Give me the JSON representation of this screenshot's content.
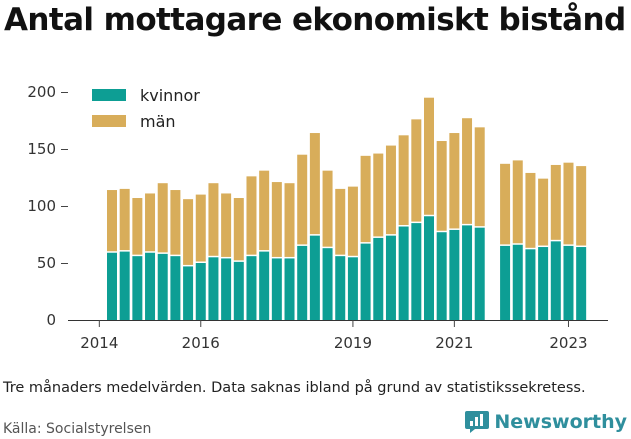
{
  "title": "Antal mottagare ekonomiskt bistånd",
  "note": "Tre månaders medelvärden. Data saknas ibland på grund av statistikssekretess.",
  "source": "Källa: Socialstyrelsen",
  "brand": "Newsworthy",
  "colors": {
    "kvinnor": "#0d9e94",
    "man": "#d8ad5a",
    "brand": "#2f8f9d"
  },
  "chart_data": {
    "type": "bar",
    "stacked": true,
    "grid": false,
    "legend_placement": "top-left",
    "y_ticks": [
      0,
      50,
      100,
      150,
      200
    ],
    "ylim": [
      0,
      210
    ],
    "x_tick_labels": [
      "2014",
      "2016",
      "2019",
      "2021",
      "2023"
    ],
    "x_tick_indices": [
      -1,
      7,
      19,
      27,
      36
    ],
    "series": [
      {
        "name": "kvinnor",
        "values": [
          59,
          60,
          56,
          59,
          58,
          56,
          47,
          50,
          55,
          54,
          51,
          56,
          60,
          54,
          54,
          65,
          74,
          63,
          56,
          55,
          67,
          72,
          74,
          82,
          85,
          91,
          77,
          79,
          83,
          81,
          null,
          65,
          66,
          62,
          64,
          69,
          65,
          64
        ]
      },
      {
        "name": "män",
        "values": [
          55,
          55,
          51,
          52,
          62,
          58,
          59,
          60,
          65,
          57,
          56,
          70,
          71,
          67,
          66,
          80,
          90,
          68,
          59,
          62,
          77,
          74,
          79,
          80,
          91,
          104,
          80,
          85,
          94,
          88,
          null,
          72,
          74,
          67,
          60,
          67,
          73,
          71
        ]
      }
    ]
  }
}
